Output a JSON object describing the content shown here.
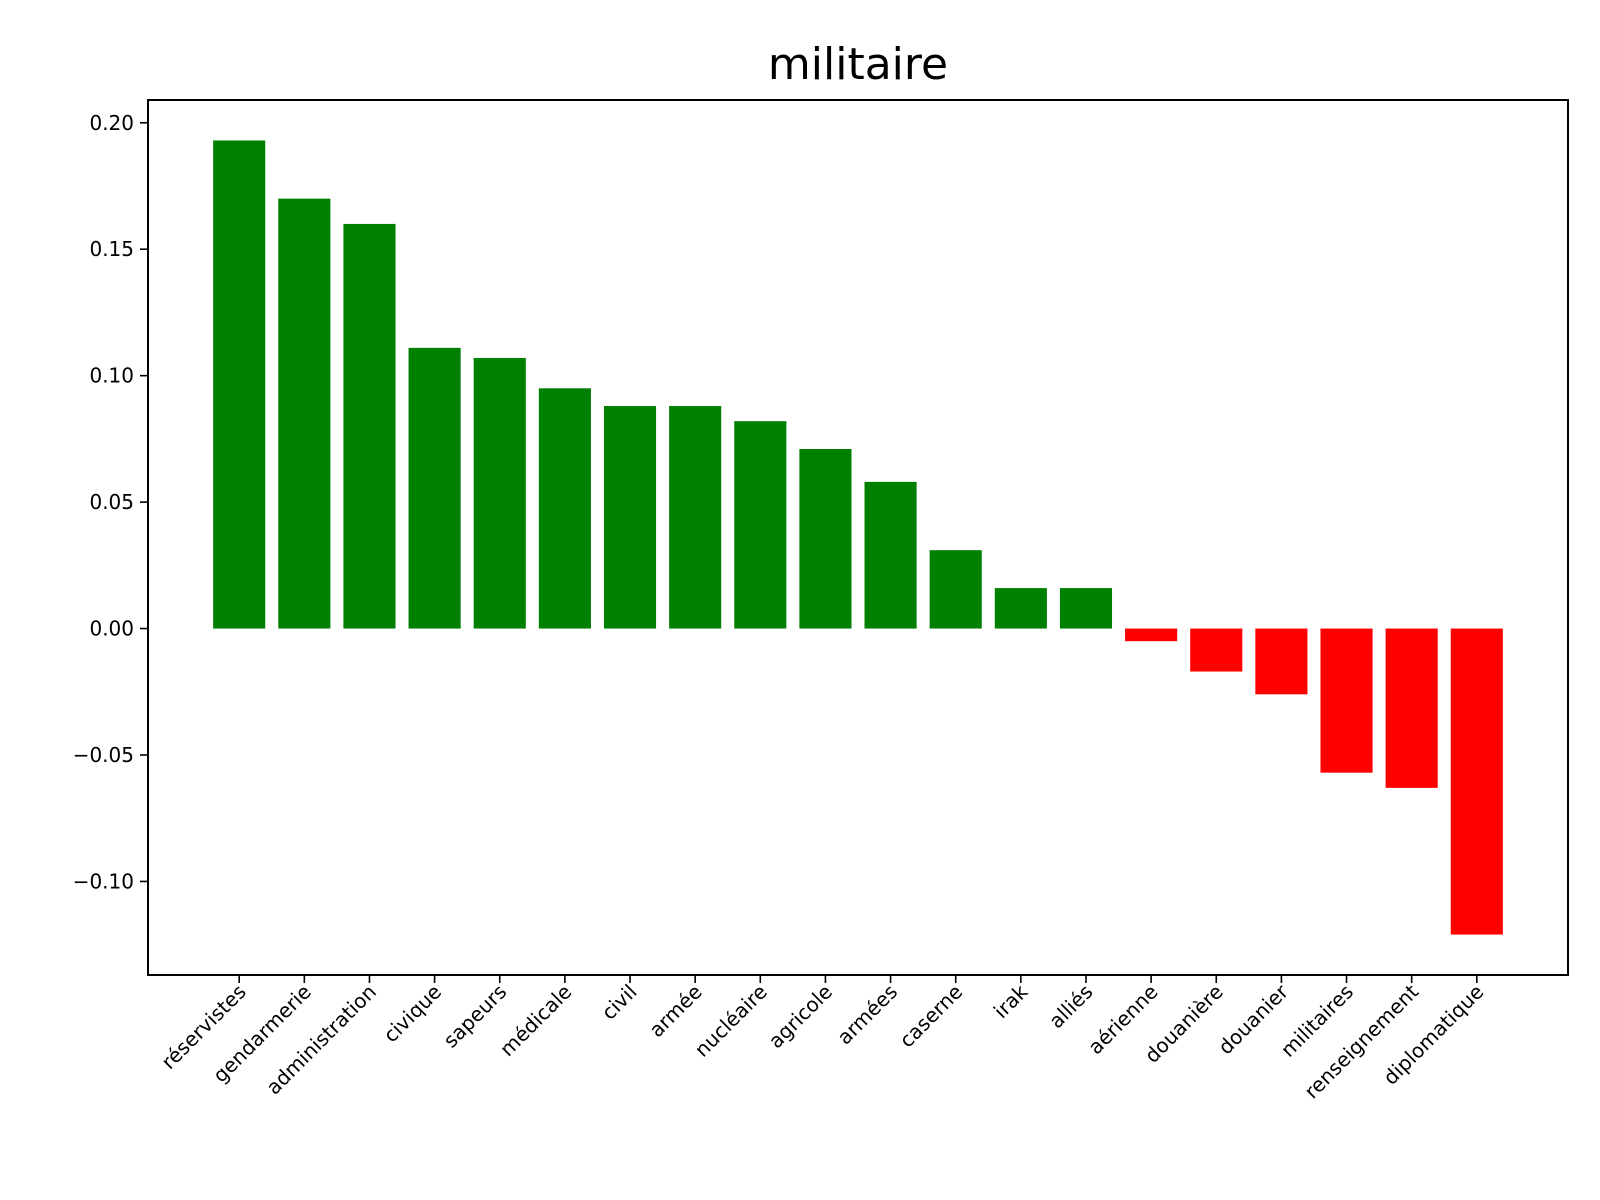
{
  "chart_data": {
    "type": "bar",
    "title": "militaire",
    "xlabel": "",
    "ylabel": "",
    "categories": [
      "réservistes",
      "gendarmerie",
      "administration",
      "civique",
      "sapeurs",
      "médicale",
      "civil",
      "armée",
      "nucléaire",
      "agricole",
      "armées",
      "caserne",
      "irak",
      "alliés",
      "aérienne",
      "douanière",
      "douanier",
      "militaires",
      "renseignement",
      "diplomatique"
    ],
    "values": [
      0.193,
      0.17,
      0.16,
      0.111,
      0.107,
      0.095,
      0.088,
      0.088,
      0.082,
      0.071,
      0.058,
      0.031,
      0.016,
      0.016,
      -0.005,
      -0.017,
      -0.026,
      -0.057,
      -0.063,
      -0.121
    ],
    "ylim": [
      -0.137,
      0.209
    ],
    "yticks": [
      -0.1,
      -0.05,
      0.0,
      0.05,
      0.1,
      0.15,
      0.2
    ],
    "ytick_labels": [
      "−0.10",
      "−0.05",
      "0.00",
      "0.05",
      "0.10",
      "0.15",
      "0.20"
    ],
    "grid": false,
    "legend": "none",
    "colors": {
      "positive": "#008000",
      "negative": "#ff0000",
      "axis": "#000000"
    }
  }
}
